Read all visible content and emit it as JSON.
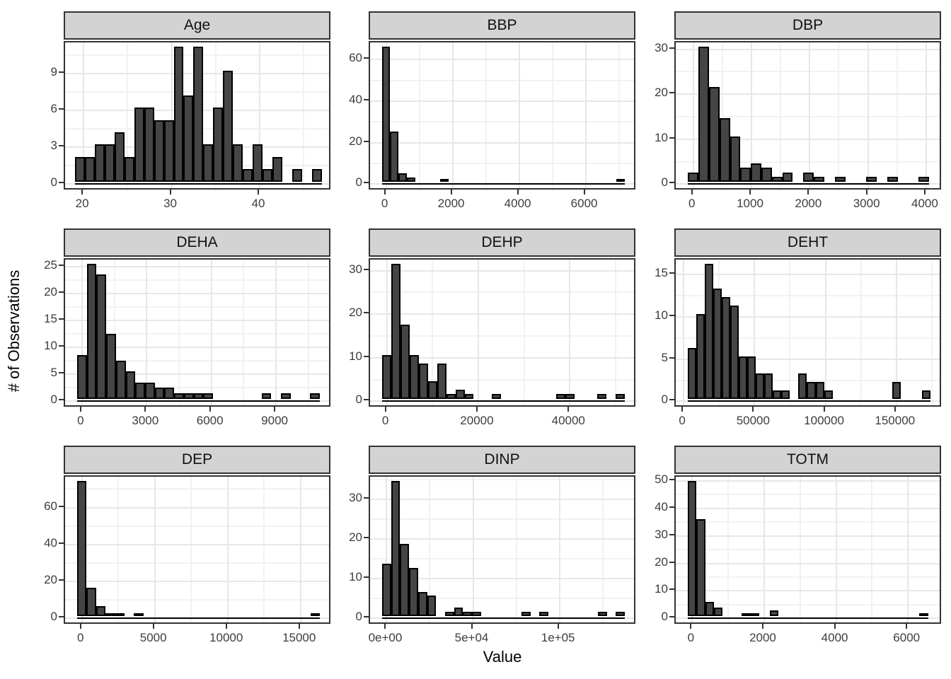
{
  "figure": {
    "x_axis_title": "Value",
    "y_axis_title": "# of Observations"
  },
  "style": {
    "strip_bg": "#d3d3d3",
    "strip_border": "#333333",
    "panel_border": "#333333",
    "grid_major": "#e7e7e7",
    "grid_minor": "#f2f2f2",
    "bar_fill": "#454545",
    "bar_stroke": "#000000",
    "tick_label_color": "#3d3d3d",
    "title_color": "#000000"
  },
  "chart_data": [
    {
      "type": "bar",
      "subtype": "histogram",
      "title": "Age",
      "xlabel": "Value",
      "ylabel": "# of Observations",
      "x_range": [
        17.9,
        48.2
      ],
      "binwidth": 1.12,
      "x_ticks": {
        "values": [
          20,
          30,
          40
        ],
        "labels": [
          "20",
          "30",
          "40"
        ]
      },
      "y_ticks": {
        "values": [
          0,
          3,
          6,
          9
        ],
        "labels": [
          "0",
          "3",
          "6",
          "9"
        ]
      },
      "bins": [
        {
          "x": 19.6,
          "n": 2
        },
        {
          "x": 20.72,
          "n": 2
        },
        {
          "x": 21.84,
          "n": 3
        },
        {
          "x": 22.96,
          "n": 3
        },
        {
          "x": 24.08,
          "n": 4
        },
        {
          "x": 25.2,
          "n": 2
        },
        {
          "x": 26.32,
          "n": 6
        },
        {
          "x": 27.44,
          "n": 6
        },
        {
          "x": 28.56,
          "n": 5
        },
        {
          "x": 29.68,
          "n": 5
        },
        {
          "x": 30.8,
          "n": 11
        },
        {
          "x": 31.92,
          "n": 7
        },
        {
          "x": 33.04,
          "n": 11
        },
        {
          "x": 34.16,
          "n": 3
        },
        {
          "x": 35.28,
          "n": 6
        },
        {
          "x": 36.4,
          "n": 9
        },
        {
          "x": 37.52,
          "n": 3
        },
        {
          "x": 38.64,
          "n": 1
        },
        {
          "x": 39.76,
          "n": 3
        },
        {
          "x": 40.88,
          "n": 1
        },
        {
          "x": 42.0,
          "n": 2
        },
        {
          "x": 44.24,
          "n": 1
        },
        {
          "x": 46.48,
          "n": 1
        }
      ]
    },
    {
      "type": "bar",
      "subtype": "histogram",
      "title": "BBP",
      "xlabel": "Value",
      "ylabel": "# of Observations",
      "x_range": [
        -480,
        7540
      ],
      "binwidth": 250,
      "x_ticks": {
        "values": [
          0,
          2000,
          4000,
          6000
        ],
        "labels": [
          "0",
          "2000",
          "4000",
          "6000"
        ]
      },
      "y_ticks": {
        "values": [
          0,
          20,
          40,
          60
        ],
        "labels": [
          "0",
          "20",
          "40",
          "60"
        ]
      },
      "bins": [
        {
          "x": 0,
          "n": 65
        },
        {
          "x": 250,
          "n": 24
        },
        {
          "x": 500,
          "n": 4
        },
        {
          "x": 750,
          "n": 2
        },
        {
          "x": 1750,
          "n": 1
        },
        {
          "x": 7050,
          "n": 1
        }
      ]
    },
    {
      "type": "bar",
      "subtype": "histogram",
      "title": "DBP",
      "xlabel": "Value",
      "ylabel": "# of Observations",
      "x_range": [
        -300,
        4280
      ],
      "binwidth": 180,
      "x_ticks": {
        "values": [
          0,
          1000,
          2000,
          3000,
          4000
        ],
        "labels": [
          "0",
          "1000",
          "2000",
          "3000",
          "4000"
        ]
      },
      "y_ticks": {
        "values": [
          0,
          10,
          20,
          30
        ],
        "labels": [
          "0",
          "10",
          "20",
          "30"
        ]
      },
      "bins": [
        {
          "x": 0,
          "n": 2
        },
        {
          "x": 180,
          "n": 30
        },
        {
          "x": 360,
          "n": 21
        },
        {
          "x": 540,
          "n": 14
        },
        {
          "x": 720,
          "n": 10
        },
        {
          "x": 900,
          "n": 3
        },
        {
          "x": 1080,
          "n": 4
        },
        {
          "x": 1260,
          "n": 3
        },
        {
          "x": 1440,
          "n": 1
        },
        {
          "x": 1620,
          "n": 2
        },
        {
          "x": 1980,
          "n": 2
        },
        {
          "x": 2160,
          "n": 1
        },
        {
          "x": 2520,
          "n": 1
        },
        {
          "x": 3060,
          "n": 1
        },
        {
          "x": 3420,
          "n": 1
        },
        {
          "x": 3960,
          "n": 1
        }
      ]
    },
    {
      "type": "bar",
      "subtype": "histogram",
      "title": "DEHA",
      "xlabel": "Value",
      "ylabel": "# of Observations",
      "x_range": [
        -785,
        11590
      ],
      "binwidth": 450,
      "x_ticks": {
        "values": [
          0,
          3000,
          6000,
          9000
        ],
        "labels": [
          "0",
          "3000",
          "6000",
          "9000"
        ]
      },
      "y_ticks": {
        "values": [
          0,
          5,
          10,
          15,
          20,
          25
        ],
        "labels": [
          "0",
          "5",
          "10",
          "15",
          "20",
          "25"
        ]
      },
      "bins": [
        {
          "x": 0,
          "n": 8
        },
        {
          "x": 450,
          "n": 25
        },
        {
          "x": 900,
          "n": 23
        },
        {
          "x": 1350,
          "n": 12
        },
        {
          "x": 1800,
          "n": 7
        },
        {
          "x": 2250,
          "n": 5
        },
        {
          "x": 2700,
          "n": 3
        },
        {
          "x": 3150,
          "n": 3
        },
        {
          "x": 3600,
          "n": 2
        },
        {
          "x": 4050,
          "n": 2
        },
        {
          "x": 4500,
          "n": 1
        },
        {
          "x": 4950,
          "n": 1
        },
        {
          "x": 5400,
          "n": 1
        },
        {
          "x": 5850,
          "n": 1
        },
        {
          "x": 8550,
          "n": 1
        },
        {
          "x": 9450,
          "n": 1
        },
        {
          "x": 10800,
          "n": 1
        }
      ]
    },
    {
      "type": "bar",
      "subtype": "histogram",
      "title": "DEHP",
      "xlabel": "Value",
      "ylabel": "# of Observations",
      "x_range": [
        -3650,
        54650
      ],
      "binwidth": 2000,
      "x_ticks": {
        "values": [
          0,
          20000,
          40000
        ],
        "labels": [
          "0",
          "20000",
          "40000"
        ]
      },
      "y_ticks": {
        "values": [
          0,
          10,
          20,
          30
        ],
        "labels": [
          "0",
          "10",
          "20",
          "30"
        ]
      },
      "bins": [
        {
          "x": 0,
          "n": 10
        },
        {
          "x": 2000,
          "n": 31
        },
        {
          "x": 4000,
          "n": 17
        },
        {
          "x": 6000,
          "n": 10
        },
        {
          "x": 8000,
          "n": 8
        },
        {
          "x": 10000,
          "n": 4
        },
        {
          "x": 12000,
          "n": 8
        },
        {
          "x": 14000,
          "n": 1
        },
        {
          "x": 16000,
          "n": 2
        },
        {
          "x": 18000,
          "n": 1
        },
        {
          "x": 24000,
          "n": 1
        },
        {
          "x": 38000,
          "n": 1
        },
        {
          "x": 40000,
          "n": 1
        },
        {
          "x": 47000,
          "n": 1
        },
        {
          "x": 51000,
          "n": 1
        }
      ]
    },
    {
      "type": "bar",
      "subtype": "histogram",
      "title": "DEHT",
      "xlabel": "Value",
      "ylabel": "# of Observations",
      "x_range": [
        -5550,
        182550
      ],
      "binwidth": 6000,
      "x_ticks": {
        "values": [
          0,
          50000,
          100000,
          150000
        ],
        "labels": [
          "0",
          "50000",
          "100000",
          "150000"
        ]
      },
      "y_ticks": {
        "values": [
          0,
          5,
          10,
          15
        ],
        "labels": [
          "0",
          "5",
          "10",
          "15"
        ]
      },
      "bins": [
        {
          "x": 6000,
          "n": 6
        },
        {
          "x": 12000,
          "n": 10
        },
        {
          "x": 18000,
          "n": 16
        },
        {
          "x": 24000,
          "n": 13
        },
        {
          "x": 30000,
          "n": 12
        },
        {
          "x": 36000,
          "n": 11
        },
        {
          "x": 42000,
          "n": 5
        },
        {
          "x": 48000,
          "n": 5
        },
        {
          "x": 54000,
          "n": 3
        },
        {
          "x": 60000,
          "n": 3
        },
        {
          "x": 66000,
          "n": 1
        },
        {
          "x": 72000,
          "n": 1
        },
        {
          "x": 84000,
          "n": 3
        },
        {
          "x": 90000,
          "n": 2
        },
        {
          "x": 96000,
          "n": 2
        },
        {
          "x": 102000,
          "n": 1
        },
        {
          "x": 150000,
          "n": 2
        },
        {
          "x": 171000,
          "n": 1
        }
      ]
    },
    {
      "type": "bar",
      "subtype": "histogram",
      "title": "DEP",
      "xlabel": "Value",
      "ylabel": "# of Observations",
      "x_range": [
        -1150,
        17150
      ],
      "binwidth": 650,
      "x_ticks": {
        "values": [
          0,
          5000,
          10000,
          15000
        ],
        "labels": [
          "0",
          "5000",
          "10000",
          "15000"
        ]
      },
      "y_ticks": {
        "values": [
          0,
          20,
          40,
          60
        ],
        "labels": [
          "0",
          "20",
          "40",
          "60"
        ]
      },
      "bins": [
        {
          "x": 0,
          "n": 73
        },
        {
          "x": 650,
          "n": 15
        },
        {
          "x": 1300,
          "n": 5
        },
        {
          "x": 1950,
          "n": 1
        },
        {
          "x": 2600,
          "n": 1
        },
        {
          "x": 3900,
          "n": 1
        },
        {
          "x": 16000,
          "n": 1
        }
      ]
    },
    {
      "type": "bar",
      "subtype": "histogram",
      "title": "DINP",
      "xlabel": "Value",
      "ylabel": "# of Observations",
      "x_range": [
        -9600,
        144800
      ],
      "binwidth": 5200,
      "x_ticks": {
        "values": [
          0,
          50000,
          100000
        ],
        "labels": [
          "0e+00",
          "5e+04",
          "1e+05"
        ]
      },
      "y_ticks": {
        "values": [
          0,
          10,
          20,
          30
        ],
        "labels": [
          "0",
          "10",
          "20",
          "30"
        ]
      },
      "bins": [
        {
          "x": 0,
          "n": 13
        },
        {
          "x": 5200,
          "n": 34
        },
        {
          "x": 10400,
          "n": 18
        },
        {
          "x": 15600,
          "n": 12
        },
        {
          "x": 20800,
          "n": 6
        },
        {
          "x": 26000,
          "n": 5
        },
        {
          "x": 36400,
          "n": 1
        },
        {
          "x": 41600,
          "n": 2
        },
        {
          "x": 46800,
          "n": 1
        },
        {
          "x": 52000,
          "n": 1
        },
        {
          "x": 80600,
          "n": 1
        },
        {
          "x": 91000,
          "n": 1
        },
        {
          "x": 124800,
          "n": 1
        },
        {
          "x": 135200,
          "n": 1
        }
      ]
    },
    {
      "type": "bar",
      "subtype": "histogram",
      "title": "TOTM",
      "xlabel": "Value",
      "ylabel": "# of Observations",
      "x_range": [
        -460,
        6960
      ],
      "binwidth": 240,
      "x_ticks": {
        "values": [
          0,
          2000,
          4000,
          6000
        ],
        "labels": [
          "0",
          "2000",
          "4000",
          "6000"
        ]
      },
      "y_ticks": {
        "values": [
          0,
          10,
          20,
          30,
          40,
          50
        ],
        "labels": [
          "0",
          "10",
          "20",
          "30",
          "40",
          "50"
        ]
      },
      "bins": [
        {
          "x": 0,
          "n": 49
        },
        {
          "x": 240,
          "n": 35
        },
        {
          "x": 480,
          "n": 5
        },
        {
          "x": 720,
          "n": 3
        },
        {
          "x": 1500,
          "n": 1
        },
        {
          "x": 1740,
          "n": 1
        },
        {
          "x": 2280,
          "n": 2
        },
        {
          "x": 6440,
          "n": 1
        }
      ]
    }
  ]
}
